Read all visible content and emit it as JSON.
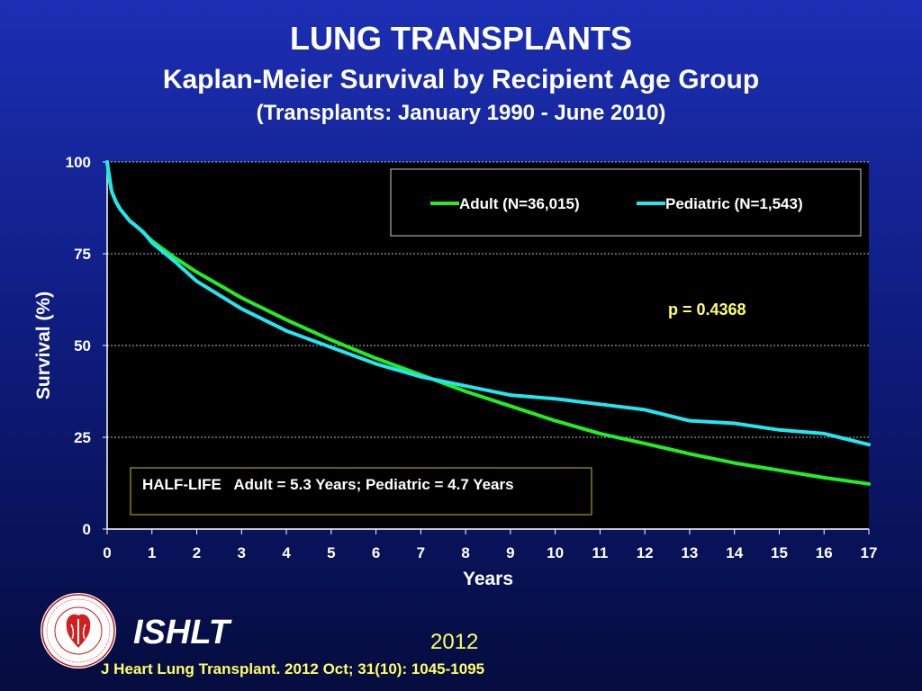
{
  "header": {
    "title": "LUNG TRANSPLANTS",
    "subtitle": "Kaplan-Meier Survival by Recipient Age Group",
    "subtitle2": "(Transplants: January 1990 - June 2010)"
  },
  "chart_data": {
    "type": "line",
    "xlabel": "Years",
    "ylabel": "Survival (%)",
    "xlim": [
      0,
      17
    ],
    "ylim": [
      0,
      100
    ],
    "x_ticks": [
      "0",
      "1",
      "2",
      "3",
      "4",
      "5",
      "6",
      "7",
      "8",
      "9",
      "10",
      "11",
      "12",
      "13",
      "14",
      "15",
      "16",
      "17"
    ],
    "y_ticks": [
      "0",
      "25",
      "50",
      "75",
      "100"
    ],
    "grid": "horizontal dashed",
    "legend_position": "top-right",
    "series": [
      {
        "name": "Adult (N=36,015)",
        "color": "#22ee22",
        "x": [
          0,
          0.05,
          0.1,
          0.2,
          0.3,
          0.5,
          0.7,
          1,
          1.5,
          2,
          3,
          4,
          5,
          6,
          7,
          8,
          9,
          10,
          11,
          12,
          13,
          14,
          15,
          16,
          17
        ],
        "y": [
          100,
          95,
          92,
          89,
          87,
          84,
          82,
          78.5,
          74,
          70,
          63,
          57,
          51.5,
          46.5,
          42,
          37.5,
          33.5,
          29.5,
          26,
          23.3,
          20.5,
          18,
          16,
          14,
          12.3
        ]
      },
      {
        "name": "Pediatric (N=1,543)",
        "color": "#22e6f0",
        "x": [
          0,
          0.05,
          0.1,
          0.2,
          0.3,
          0.5,
          0.7,
          0.8,
          1,
          1.5,
          2,
          3,
          4,
          5,
          6,
          7,
          8,
          9,
          10,
          11,
          12,
          13,
          14,
          15,
          16,
          16.5,
          17
        ],
        "y": [
          100,
          96,
          92,
          89,
          87,
          84,
          82,
          81,
          78,
          73,
          67.5,
          60,
          54,
          49.5,
          45,
          41.5,
          39,
          36.5,
          35.5,
          34,
          32.5,
          29.5,
          28.8,
          27,
          26,
          24.5,
          23
        ]
      }
    ],
    "annotations": {
      "p_value": "p = 0.4368",
      "half_life": "HALF-LIFE   Adult = 5.3 Years; Pediatric = 4.7 Years"
    }
  },
  "footer": {
    "org": "ISHLT",
    "year": "2012",
    "citation": "J Heart Lung Transplant.  2012 Oct; 31(10): 1045-1095",
    "logo_text": "INTERNATIONAL SOCIETY FOR HEART & LUNG TRANSPLANTATION"
  }
}
